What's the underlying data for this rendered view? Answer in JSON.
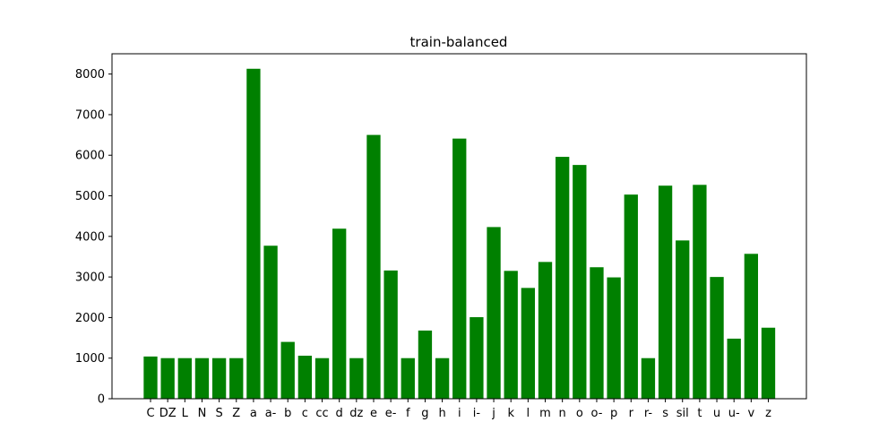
{
  "chart_data": {
    "type": "bar",
    "title": "train-balanced",
    "xlabel": "",
    "ylabel": "",
    "ylim": [
      0,
      8500
    ],
    "yticks": [
      0,
      1000,
      2000,
      3000,
      4000,
      5000,
      6000,
      7000,
      8000
    ],
    "grid": false,
    "bar_color": "#008000",
    "categories": [
      "C",
      "DZ",
      "L",
      "N",
      "S",
      "Z",
      "a",
      "a-",
      "b",
      "c",
      "cc",
      "d",
      "dz",
      "e",
      "e-",
      "f",
      "g",
      "h",
      "i",
      "i-",
      "j",
      "k",
      "l",
      "m",
      "n",
      "o",
      "o-",
      "p",
      "r",
      "r-",
      "s",
      "sil",
      "t",
      "u",
      "u-",
      "v",
      "z"
    ],
    "values": [
      1040,
      1000,
      1000,
      1000,
      1000,
      1000,
      8130,
      3770,
      1400,
      1060,
      1000,
      4190,
      1000,
      6500,
      3160,
      1000,
      1680,
      1000,
      6410,
      2010,
      4230,
      3150,
      2730,
      3370,
      5960,
      5760,
      3240,
      2990,
      5030,
      1000,
      5250,
      3900,
      5270,
      3000,
      1480,
      3570,
      1750
    ]
  }
}
